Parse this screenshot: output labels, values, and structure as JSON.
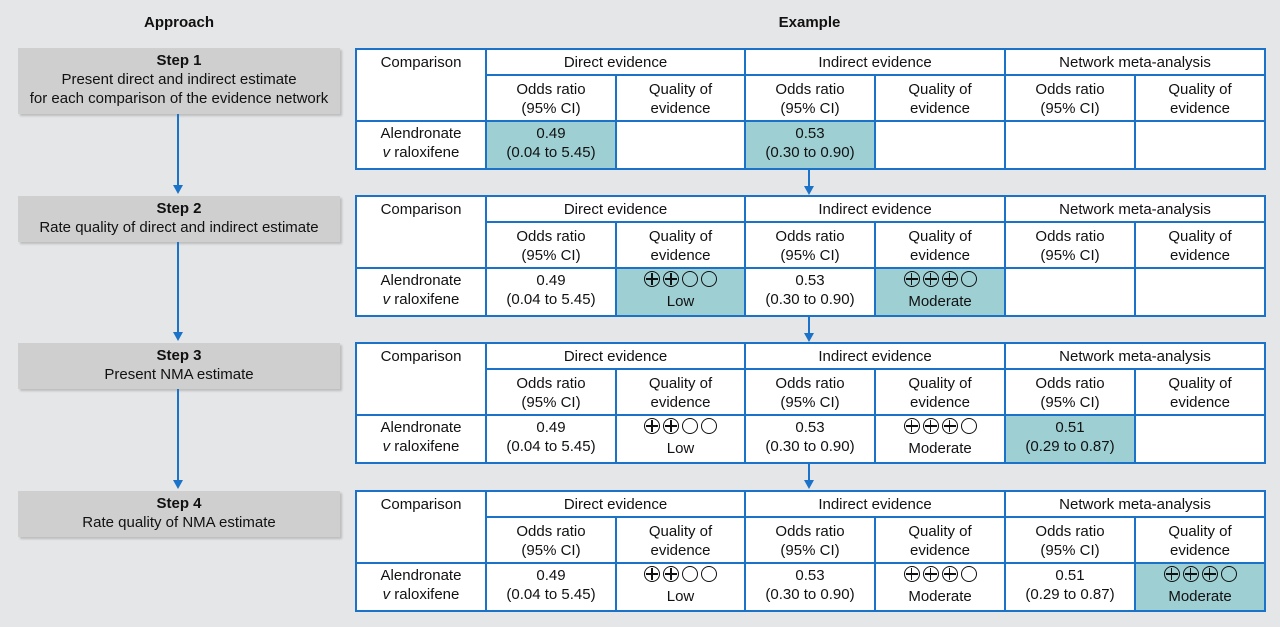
{
  "headers": {
    "approach": "Approach",
    "example": "Example"
  },
  "steps": [
    {
      "title": "Step 1",
      "lines": [
        "Present direct and indirect estimate",
        "for each comparison of the evidence network"
      ]
    },
    {
      "title": "Step 2",
      "lines": [
        "Rate quality of direct and indirect estimate"
      ]
    },
    {
      "title": "Step 3",
      "lines": [
        "Present NMA estimate"
      ]
    },
    {
      "title": "Step 4",
      "lines": [
        "Rate quality of NMA estimate"
      ]
    }
  ],
  "table_header": {
    "comparison": "Comparison",
    "direct": "Direct evidence",
    "indirect": "Indirect evidence",
    "nma": "Network meta-analysis",
    "or_line1": "Odds ratio",
    "or_line2": "(95% CI)",
    "q_line1": "Quality of",
    "q_line2": "evidence"
  },
  "comparison_row": {
    "line1": "Alendronate",
    "line2_italic": "v",
    "line2_rest": " raloxifene"
  },
  "values": {
    "direct_or": "0.49",
    "direct_ci": "(0.04 to 5.45)",
    "indirect_or": "0.53",
    "indirect_ci": "(0.30 to 0.90)",
    "nma_or": "0.51",
    "nma_ci": "(0.29 to 0.87)",
    "direct_quality": "Low",
    "direct_quality_plus": 2,
    "indirect_quality": "Moderate",
    "indirect_quality_plus": 3,
    "nma_quality": "Moderate",
    "nma_quality_plus": 3
  },
  "colors": {
    "accent": "#1a73c8",
    "highlight": "#9ecfd3",
    "step_box": "#cfcfcf",
    "background": "#e5e6e7"
  }
}
